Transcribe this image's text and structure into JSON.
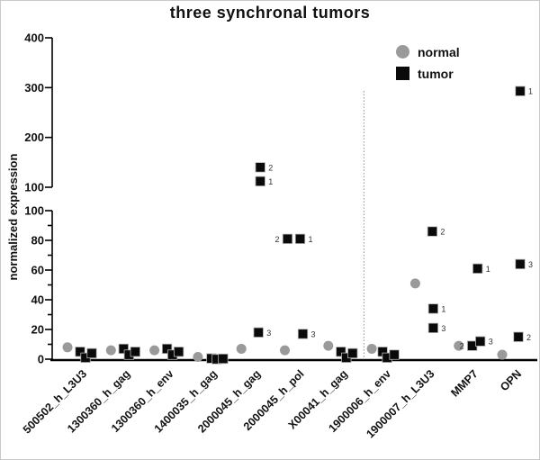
{
  "figure": {
    "title": "three synchronal tumors"
  },
  "legend": {
    "items": [
      {
        "label": "normal",
        "marker": "circle",
        "color": "#9a9a9a"
      },
      {
        "label": "tumor",
        "marker": "square",
        "color": "#0a0a0a"
      }
    ]
  },
  "chart_data": {
    "type": "scatter",
    "title": "three synchronal tumors",
    "xlabel": "",
    "ylabel": "normalized expression",
    "grid": false,
    "legend_position": "top-right-inside",
    "y_axis": {
      "broken": true,
      "upper_segment": {
        "range": [
          100,
          400
        ],
        "ticks": [
          400,
          300,
          200,
          100
        ]
      },
      "lower_segment": {
        "range": [
          0,
          100
        ],
        "ticks": [
          100,
          80,
          60,
          40,
          20,
          0
        ],
        "minor_ticks": [
          10,
          30,
          50,
          70,
          90
        ]
      }
    },
    "separator_line_after": "X00041_h_gag",
    "categories": [
      "500502_h_L3U3",
      "1300360_h_gag",
      "1300360_h_env",
      "1400035_h_gag",
      "2000045_h_gag",
      "2000045_h_pol",
      "X00041_h_gag",
      "1900006_h_env",
      "1900007_h_L3U3",
      "MMP7",
      "OPN"
    ],
    "series": [
      {
        "name": "normal",
        "marker": "circle",
        "color": "#9a9a9a",
        "values": [
          8,
          6,
          6,
          1.5,
          7,
          6,
          9,
          7,
          51,
          9,
          3
        ]
      },
      {
        "name": "tumor",
        "marker": "square",
        "color": "#0a0a0a",
        "points_by_category": [
          [
            {
              "v": 5,
              "dx": 14
            },
            {
              "v": 1,
              "dx": 20
            },
            {
              "v": 4,
              "dx": 27
            }
          ],
          [
            {
              "v": 7,
              "dx": 14
            },
            {
              "v": 3,
              "dx": 20
            },
            {
              "v": 5,
              "dx": 27
            }
          ],
          [
            {
              "v": 7,
              "dx": 14
            },
            {
              "v": 3,
              "dx": 20
            },
            {
              "v": 5,
              "dx": 27
            }
          ],
          [
            {
              "v": 0.5,
              "dx": 15
            },
            {
              "v": 0,
              "dx": 21
            },
            {
              "v": 0.3,
              "dx": 28
            }
          ],
          [
            {
              "v": 140,
              "dx": 21,
              "label": "2"
            },
            {
              "v": 112,
              "dx": 21,
              "label": "1"
            },
            {
              "v": 18,
              "dx": 19,
              "label": "3"
            }
          ],
          [
            {
              "v": 81,
              "dx": 3,
              "label": "2",
              "label_side": "left"
            },
            {
              "v": 81,
              "dx": 17,
              "label": "1"
            },
            {
              "v": 17,
              "dx": 20,
              "label": "3"
            }
          ],
          [
            {
              "v": 5,
              "dx": 14
            },
            {
              "v": 1,
              "dx": 20
            },
            {
              "v": 4,
              "dx": 27
            }
          ],
          [
            {
              "v": 5,
              "dx": 12
            },
            {
              "v": 1,
              "dx": 17
            },
            {
              "v": 3,
              "dx": 25
            }
          ],
          [
            {
              "v": 86,
              "dx": 19,
              "label": "2"
            },
            {
              "v": 34,
              "dx": 20,
              "label": "1"
            },
            {
              "v": 21,
              "dx": 20,
              "label": "3"
            }
          ],
          [
            {
              "v": 9,
              "dx": 15,
              "label": "2",
              "label_side": "left"
            },
            {
              "v": 12,
              "dx": 24,
              "label": "3"
            },
            {
              "v": 61,
              "dx": 21,
              "label": "1"
            }
          ],
          [
            {
              "v": 15,
              "dx": 18,
              "label": "2"
            },
            {
              "v": 64,
              "dx": 20,
              "label": "3"
            },
            {
              "v": 293,
              "dx": 20,
              "label": "1"
            }
          ]
        ]
      }
    ]
  }
}
